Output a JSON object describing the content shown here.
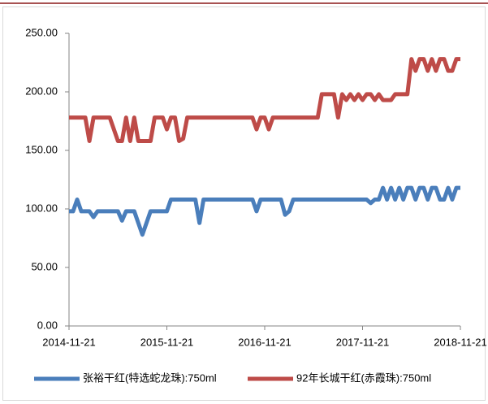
{
  "chart_data": {
    "type": "line",
    "categories": [
      "2014-11-21",
      null,
      null,
      null,
      null,
      null,
      null,
      null,
      null,
      null,
      null,
      null,
      null,
      null,
      null,
      null,
      null,
      null,
      null,
      null,
      null,
      null,
      null,
      null,
      "2015-11-21",
      null,
      null,
      null,
      null,
      null,
      null,
      null,
      null,
      null,
      null,
      null,
      null,
      null,
      null,
      null,
      null,
      null,
      null,
      null,
      null,
      null,
      null,
      null,
      "2016-11-21",
      null,
      null,
      null,
      null,
      null,
      null,
      null,
      null,
      null,
      null,
      null,
      null,
      null,
      null,
      null,
      null,
      null,
      null,
      null,
      null,
      null,
      null,
      null,
      "2017-11-21",
      null,
      null,
      null,
      null,
      null,
      null,
      null,
      null,
      null,
      null,
      null,
      null,
      null,
      null,
      null,
      null,
      null,
      null,
      null,
      null,
      null,
      null,
      null,
      "2018-11-21"
    ],
    "series": [
      {
        "name": "张裕干红(特选蛇龙珠):750ml",
        "color": "#4a7ebb",
        "values": [
          98,
          98,
          108,
          98,
          98,
          98,
          93,
          98,
          98,
          98,
          98,
          98,
          98,
          90,
          98,
          98,
          98,
          88,
          78,
          88,
          98,
          98,
          98,
          98,
          98,
          108,
          108,
          108,
          108,
          108,
          108,
          108,
          88,
          108,
          108,
          108,
          108,
          108,
          108,
          108,
          108,
          108,
          108,
          108,
          108,
          108,
          98,
          108,
          108,
          108,
          108,
          108,
          108,
          95,
          98,
          108,
          108,
          108,
          108,
          108,
          108,
          108,
          108,
          108,
          108,
          108,
          108,
          108,
          108,
          108,
          108,
          108,
          108,
          108,
          105,
          108,
          108,
          118,
          108,
          118,
          108,
          118,
          108,
          118,
          118,
          108,
          118,
          118,
          108,
          118,
          118,
          108,
          108,
          118,
          108,
          118,
          118
        ]
      },
      {
        "name": "92年长城干红(赤霞珠):750ml",
        "color": "#be4b48",
        "values": [
          178,
          178,
          178,
          178,
          178,
          158,
          178,
          178,
          178,
          178,
          178,
          168,
          158,
          158,
          178,
          158,
          178,
          158,
          158,
          158,
          158,
          178,
          178,
          178,
          168,
          178,
          178,
          158,
          160,
          178,
          178,
          178,
          178,
          178,
          178,
          178,
          178,
          178,
          178,
          178,
          178,
          178,
          178,
          178,
          178,
          178,
          168,
          178,
          178,
          168,
          178,
          178,
          178,
          178,
          178,
          178,
          178,
          178,
          178,
          178,
          178,
          178,
          198,
          198,
          198,
          198,
          178,
          198,
          193,
          198,
          193,
          198,
          193,
          198,
          198,
          193,
          198,
          193,
          193,
          193,
          198,
          198,
          198,
          198,
          228,
          218,
          228,
          228,
          218,
          228,
          218,
          228,
          228,
          218,
          218,
          228,
          228
        ]
      }
    ],
    "ylim": [
      0,
      250
    ],
    "yticks": [
      {
        "value": 0,
        "label": "0.00"
      },
      {
        "value": 50,
        "label": "50.00"
      },
      {
        "value": 100,
        "label": "100.00"
      },
      {
        "value": 150,
        "label": "150.00"
      },
      {
        "value": 200,
        "label": "200.00"
      },
      {
        "value": 250,
        "label": "250.00"
      }
    ],
    "grid": false,
    "legend": "bottom"
  }
}
